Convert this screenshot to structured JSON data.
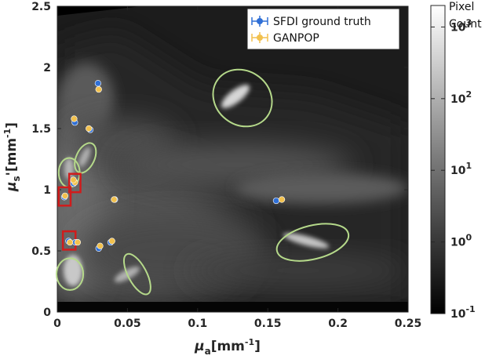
{
  "chart_data": {
    "type": "scatter",
    "background": "heatmap",
    "xlim": [
      0,
      0.25
    ],
    "ylim": [
      0,
      2.5
    ],
    "xticks": [
      "0",
      "0.05",
      "0.1",
      "0.15",
      "0.2",
      "0.25"
    ],
    "yticks": [
      "0",
      "0.5",
      "1",
      "1.5",
      "2",
      "2.5"
    ],
    "xlabel": {
      "sym": "μ",
      "sub": "a",
      "unit": "[mm",
      "exp": "-1",
      "close": "]"
    },
    "ylabel": {
      "sym": "μ",
      "sub": "s",
      "unit": "'[mm",
      "exp": "-1",
      "close": "]"
    },
    "grid": false,
    "legend_position": "top-right",
    "series": [
      {
        "name": "SFDI ground truth",
        "color": "#2f6fd6",
        "marker": "circle",
        "x": [
          0.029,
          0.0125,
          0.0235,
          0.0115,
          0.0115,
          0.005,
          0.041,
          0.156,
          0.008,
          0.013,
          0.0295,
          0.038
        ],
        "y": [
          1.87,
          1.55,
          1.49,
          1.07,
          1.05,
          0.94,
          0.92,
          0.91,
          0.58,
          0.57,
          0.52,
          0.57
        ]
      },
      {
        "name": "GANPOP",
        "color": "#f2c14e",
        "marker": "circle",
        "x": [
          0.0295,
          0.012,
          0.0225,
          0.0125,
          0.0115,
          0.0055,
          0.0405,
          0.16,
          0.009,
          0.0145,
          0.0305,
          0.039
        ],
        "y": [
          1.82,
          1.58,
          1.5,
          1.06,
          1.08,
          0.95,
          0.92,
          0.92,
          0.57,
          0.57,
          0.54,
          0.58
        ]
      }
    ],
    "highlight_ellipses": {
      "color": "#b5d98a",
      "items": [
        {
          "cx": 0.132,
          "cy": 1.75,
          "rx": 0.022,
          "ry": 0.22,
          "angle": 38
        },
        {
          "cx": 0.0085,
          "cy": 1.14,
          "rx": 0.0075,
          "ry": 0.12,
          "angle": 0
        },
        {
          "cx": 0.02,
          "cy": 1.26,
          "rx": 0.0065,
          "ry": 0.13,
          "angle": 25
        },
        {
          "cx": 0.009,
          "cy": 0.31,
          "rx": 0.0095,
          "ry": 0.13,
          "angle": 0
        },
        {
          "cx": 0.057,
          "cy": 0.31,
          "rx": 0.016,
          "ry": 0.075,
          "angle": 62
        },
        {
          "cx": 0.182,
          "cy": 0.57,
          "rx": 0.012,
          "ry": 0.3,
          "angle": 76
        }
      ]
    },
    "highlight_boxes": {
      "color": "#d01c1c",
      "items": [
        {
          "x0": 0.0085,
          "x1": 0.0165,
          "y0": 0.98,
          "y1": 1.13
        },
        {
          "x0": 0.001,
          "x1": 0.0095,
          "y0": 0.87,
          "y1": 1.02
        },
        {
          "x0": 0.004,
          "x1": 0.013,
          "y0": 0.51,
          "y1": 0.66
        }
      ]
    },
    "colorbar": {
      "title_line1": "Pixel",
      "title_line2": "Count",
      "scale": "log",
      "colormap": "gray",
      "range_exp": [
        -1,
        3.3
      ],
      "ticks": [
        {
          "base": "10",
          "exp": "3",
          "value_exp": 3
        },
        {
          "base": "10",
          "exp": "2",
          "value_exp": 2
        },
        {
          "base": "10",
          "exp": "1",
          "value_exp": 1
        },
        {
          "base": "10",
          "exp": "0",
          "value_exp": 0
        },
        {
          "base": "10",
          "exp": "-1",
          "value_exp": -1
        }
      ]
    }
  }
}
